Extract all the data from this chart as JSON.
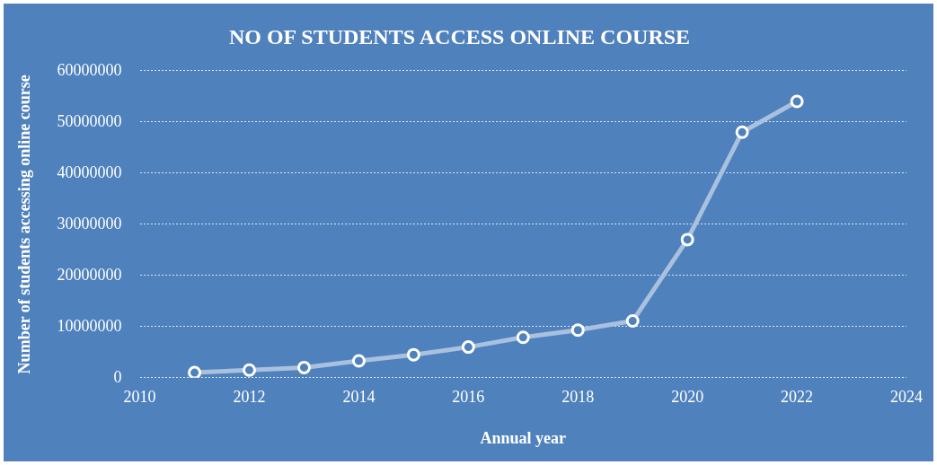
{
  "chart_data": {
    "type": "line",
    "title": "NO OF STUDENTS ACCESS ONLINE COURSE",
    "xlabel": "Annual year",
    "ylabel": "Number of students accessing online course",
    "x": [
      2011,
      2012,
      2013,
      2014,
      2015,
      2016,
      2017,
      2018,
      2019,
      2020,
      2021,
      2022
    ],
    "series": [
      {
        "color": "#a9c0df",
        "values": [
          1000000,
          1500000,
          2000000,
          3300000,
          4500000,
          6000000,
          7900000,
          9300000,
          11100000,
          27000000,
          48000000,
          54000000
        ]
      }
    ],
    "xlim": [
      2010,
      2024
    ],
    "xticks": [
      2010,
      2012,
      2014,
      2016,
      2018,
      2020,
      2022,
      2024
    ],
    "ylim": [
      0,
      60000000
    ],
    "yticks": [
      0,
      10000000,
      20000000,
      30000000,
      40000000,
      50000000,
      60000000
    ],
    "grid": "y",
    "legend": false,
    "marker": "circle",
    "line_style": "solid"
  }
}
